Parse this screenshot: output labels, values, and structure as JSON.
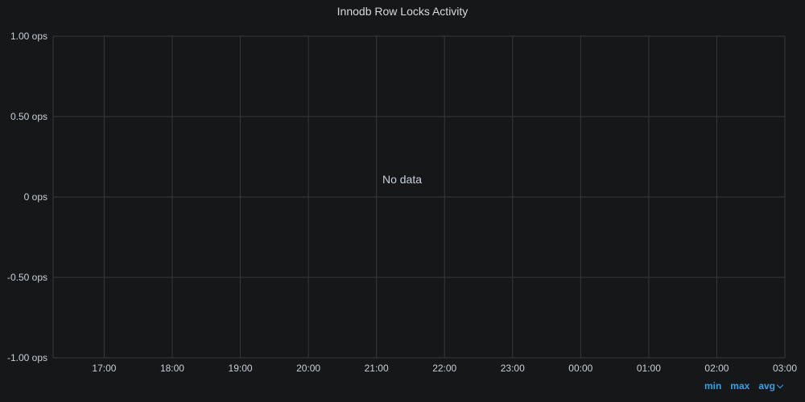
{
  "panel": {
    "title": "Innodb Row Locks Activity",
    "no_data_text": "No data"
  },
  "colors": {
    "background": "#161719",
    "grid": "#37383c",
    "text": "#c7d0d9",
    "accent": "#33a2e5"
  },
  "legend": {
    "min_label": "min",
    "max_label": "max",
    "avg_label": "avg",
    "sort_icon": "chevron-down-icon"
  },
  "chart_data": {
    "type": "line",
    "title": "Innodb Row Locks Activity",
    "xlabel": "",
    "ylabel": "",
    "series": [],
    "y_ticks": [
      "1.00 ops",
      "0.50 ops",
      "0 ops",
      "-0.50 ops",
      "-1.00 ops"
    ],
    "ylim": [
      -1,
      1
    ],
    "x_ticks": [
      "17:00",
      "18:00",
      "19:00",
      "20:00",
      "21:00",
      "22:00",
      "23:00",
      "00:00",
      "01:00",
      "02:00",
      "03:00"
    ],
    "xlim": [
      "16:15",
      "03:00"
    ],
    "grid": true,
    "legend_placement": "bottom-right"
  }
}
